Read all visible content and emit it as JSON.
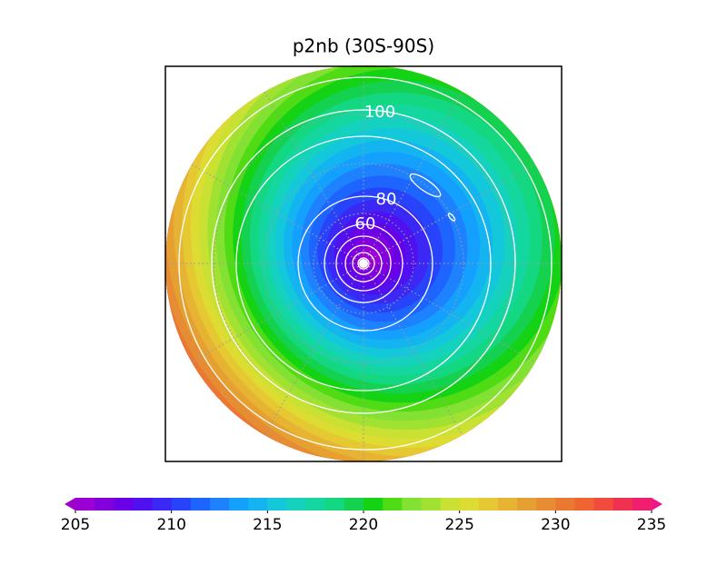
{
  "map": {
    "title": "p2nb (30S-90S)",
    "contour_labels": [
      100,
      80,
      60
    ],
    "colorbar": {
      "lim": [
        205,
        235
      ],
      "ticks": [
        205,
        210,
        215,
        220,
        225,
        230,
        235
      ],
      "colors": [
        "#9a00d6",
        "#8200dc",
        "#6a00e6",
        "#5010f0",
        "#3c28f5",
        "#2844fa",
        "#1e64ff",
        "#1e82ff",
        "#14a0ff",
        "#14b4f0",
        "#14c8dc",
        "#14d2be",
        "#14d7a0",
        "#14d782",
        "#14d250",
        "#14d214",
        "#50dc14",
        "#82e132",
        "#a0e132",
        "#c8e132",
        "#dcdc32",
        "#e6c832",
        "#e6b432",
        "#e6a032",
        "#e68c32",
        "#eb7832",
        "#f06432",
        "#f04b3c",
        "#f03250",
        "#f01e6e"
      ],
      "under": "#a000c8",
      "over": "#f0148c"
    }
  }
}
